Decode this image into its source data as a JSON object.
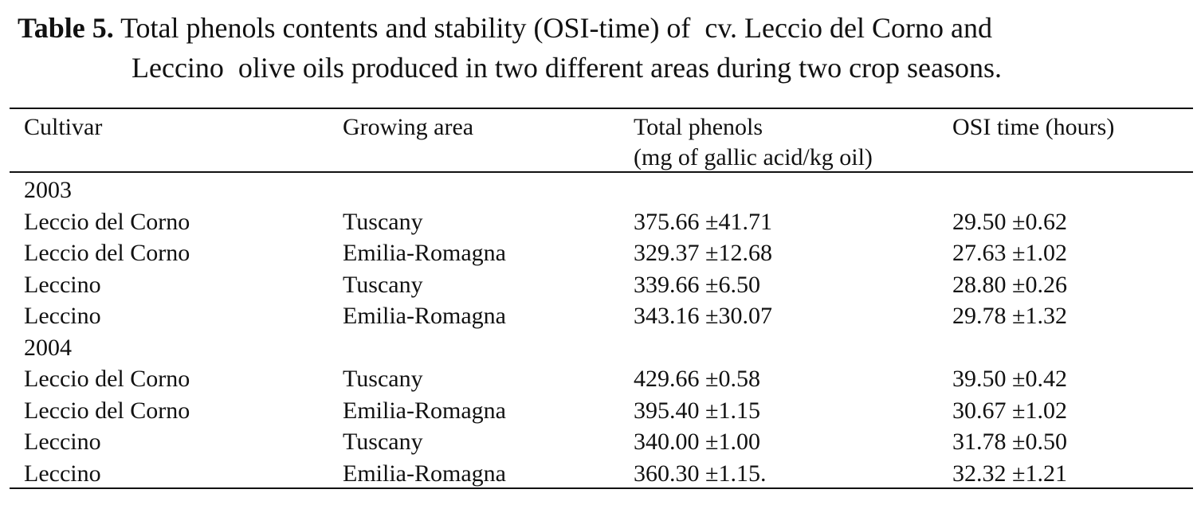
{
  "caption": {
    "label": "Table 5.",
    "lines": [
      "Total phenols contents and stability (OSI-time) of  cv. Leccio del Corno and",
      "Leccino  olive oils produced in two different areas during two crop seasons."
    ]
  },
  "table": {
    "header": [
      [
        "Cultivar"
      ],
      [
        "Growing area"
      ],
      [
        "Total phenols",
        "(mg of gallic acid/kg oil)"
      ],
      [
        "OSI time (hours)"
      ]
    ],
    "groups": [
      {
        "year": "2003",
        "rows": [
          [
            "Leccio del Corno",
            "Tuscany",
            "375.66 ±41.71",
            "29.50 ±0.62"
          ],
          [
            "Leccio del Corno",
            "Emilia-Romagna",
            "329.37 ±12.68",
            "27.63 ±1.02"
          ],
          [
            "Leccino",
            "Tuscany",
            "339.66 ±6.50",
            "28.80 ±0.26"
          ],
          [
            "Leccino",
            "Emilia-Romagna",
            "343.16 ±30.07",
            "29.78 ±1.32"
          ]
        ]
      },
      {
        "year": "2004",
        "rows": [
          [
            "Leccio del Corno",
            "Tuscany",
            "429.66 ±0.58",
            "39.50 ±0.42"
          ],
          [
            "Leccio del Corno",
            "Emilia-Romagna",
            "395.40 ±1.15",
            "30.67 ±1.02"
          ],
          [
            "Leccino",
            "Tuscany",
            "340.00 ±1.00",
            "31.78 ±0.50"
          ],
          [
            "Leccino",
            "Emilia-Romagna",
            "360.30 ±1.15.",
            "32.32 ±1.21"
          ]
        ]
      }
    ]
  }
}
